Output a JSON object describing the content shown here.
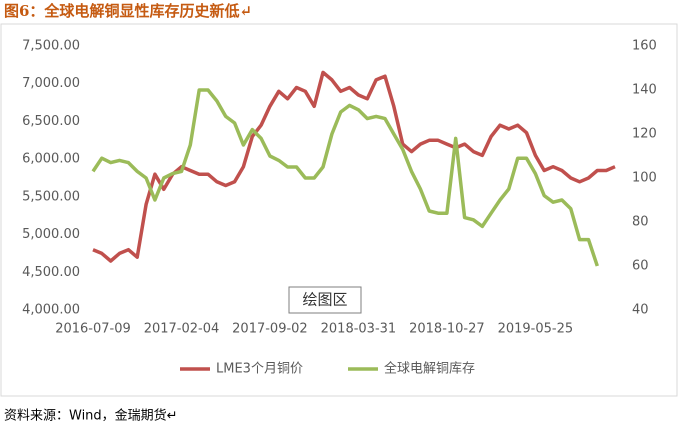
{
  "chart_data": {
    "type": "line",
    "title": "图6：全球电解铜显性库存历史新低↵",
    "source": "资料来源：Wind，金瑞期货↵",
    "annotation": "绘图区",
    "categories": [
      "2016-07-09",
      null,
      null,
      null,
      null,
      null,
      null,
      null,
      null,
      null,
      "2017-02-04",
      null,
      null,
      null,
      null,
      null,
      null,
      null,
      null,
      null,
      "2017-09-02",
      null,
      null,
      null,
      null,
      null,
      null,
      null,
      null,
      null,
      "2018-03-31",
      null,
      null,
      null,
      null,
      null,
      null,
      null,
      null,
      null,
      "2018-10-27",
      null,
      null,
      null,
      null,
      null,
      null,
      null,
      null,
      null,
      "2019-05-25",
      null,
      null,
      null,
      null,
      null,
      null,
      null,
      null,
      null
    ],
    "series": [
      {
        "name": "LME3个月铜价",
        "color": "#c0504d",
        "axis": "y",
        "values": [
          4800,
          4750,
          4650,
          4750,
          4800,
          4700,
          5400,
          5800,
          5600,
          5800,
          5900,
          5850,
          5800,
          5800,
          5700,
          5650,
          5700,
          5900,
          6300,
          6450,
          6700,
          6900,
          6800,
          6950,
          6900,
          6700,
          7150,
          7050,
          6900,
          6950,
          6850,
          6800,
          7050,
          7100,
          6700,
          6200,
          6100,
          6200,
          6250,
          6250,
          6200,
          6150,
          6200,
          6100,
          6050,
          6300,
          6450,
          6400,
          6450,
          6350,
          6050,
          5850,
          5900,
          5850,
          5750,
          5700,
          5750,
          5850,
          5850,
          5900
        ]
      },
      {
        "name": "全球电解铜库存",
        "color": "#9bbb59",
        "axis": "y2",
        "values": [
          103,
          109,
          107,
          108,
          107,
          103,
          100,
          90,
          100,
          102,
          103,
          115,
          140,
          140,
          135,
          128,
          125,
          115,
          122,
          118,
          110,
          108,
          105,
          105,
          100,
          100,
          105,
          120,
          130,
          133,
          131,
          127,
          128,
          127,
          120,
          113,
          103,
          95,
          85,
          84,
          84,
          118,
          82,
          81,
          78,
          84,
          90,
          95,
          109,
          109,
          102,
          92,
          89,
          90,
          86,
          72,
          72,
          60,
          null,
          null
        ]
      }
    ],
    "ylim": [
      4000,
      7500
    ],
    "yticks": [
      {
        "value": 4000,
        "label": "4,000.00"
      },
      {
        "value": 4500,
        "label": "4,500.00"
      },
      {
        "value": 5000,
        "label": "5,000.00"
      },
      {
        "value": 5500,
        "label": "5,500.00"
      },
      {
        "value": 6000,
        "label": "6,000.00"
      },
      {
        "value": 6500,
        "label": "6,500.00"
      },
      {
        "value": 7000,
        "label": "7,000.00"
      },
      {
        "value": 7500,
        "label": "7,500.00"
      }
    ],
    "y2lim": [
      40,
      160
    ],
    "y2ticks": [
      40,
      60,
      80,
      100,
      120,
      140,
      160
    ],
    "grid": false,
    "legend": "bottom"
  }
}
